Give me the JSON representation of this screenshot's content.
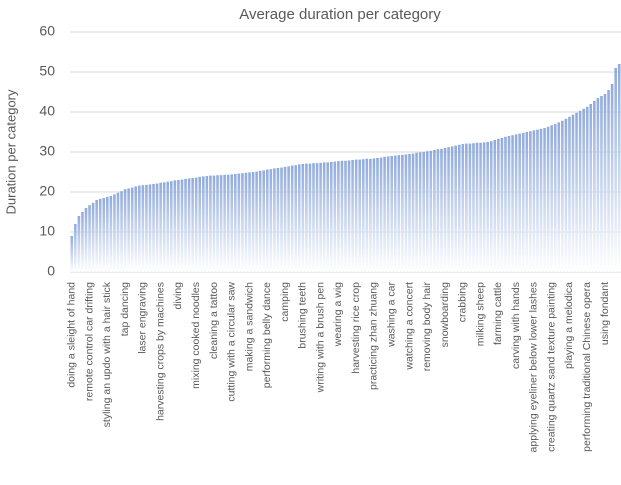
{
  "chart_data": {
    "type": "bar",
    "title": "Average duration per category",
    "ylabel": "Duration per category",
    "categories": [
      "doing a sleight of hand",
      null,
      null,
      null,
      null,
      "remote control car drifting",
      null,
      null,
      null,
      null,
      "styling an updo with a hair stick",
      null,
      null,
      null,
      null,
      "tap dancing",
      null,
      null,
      null,
      null,
      "laser engraving",
      null,
      null,
      null,
      null,
      "harvesting crops by machines",
      null,
      null,
      null,
      null,
      "diving",
      null,
      null,
      null,
      null,
      "mixing cooked noodles",
      null,
      null,
      null,
      null,
      "cleaning a tattoo",
      null,
      null,
      null,
      null,
      "cutting with a circular saw",
      null,
      null,
      null,
      null,
      "making a sandwich",
      null,
      null,
      null,
      null,
      "performing belly dance",
      null,
      null,
      null,
      null,
      "camping",
      null,
      null,
      null,
      null,
      "brushing teeth",
      null,
      null,
      null,
      null,
      "writing with a brush pen",
      null,
      null,
      null,
      null,
      "wearing a wig",
      null,
      null,
      null,
      null,
      "harvesting rice crop",
      null,
      null,
      null,
      null,
      "practicing zhan zhuang",
      null,
      null,
      null,
      null,
      "washing a car",
      null,
      null,
      null,
      null,
      "watching a concert",
      null,
      null,
      null,
      null,
      "removing body hair",
      null,
      null,
      null,
      null,
      "snowboarding",
      null,
      null,
      null,
      null,
      "crabbing",
      null,
      null,
      null,
      null,
      "milking sheep",
      null,
      null,
      null,
      null,
      "farming cattle",
      null,
      null,
      null,
      null,
      "carving with hands",
      null,
      null,
      null,
      null,
      "applying eyeliner below lower lashes",
      null,
      null,
      null,
      null,
      "creating quartz sand texture painting",
      null,
      null,
      null,
      null,
      "playing a melodica",
      null,
      null,
      null,
      null,
      "performing traditional Chinese opera",
      null,
      null,
      null,
      null,
      "using fondant",
      null,
      null,
      null,
      null
    ],
    "values": [
      9,
      12,
      14,
      15,
      16,
      16.7,
      17.3,
      18,
      18.3,
      18.5,
      18.8,
      19,
      19.4,
      19.8,
      20.2,
      20.7,
      20.9,
      21.1,
      21.4,
      21.6,
      21.7,
      21.8,
      21.9,
      22,
      22.1,
      22.3,
      22.4,
      22.6,
      22.7,
      22.9,
      23,
      23.1,
      23.3,
      23.4,
      23.5,
      23.6,
      23.8,
      23.9,
      24,
      24.1,
      24.1,
      24.2,
      24.2,
      24.3,
      24.3,
      24.4,
      24.5,
      24.6,
      24.7,
      24.8,
      24.9,
      25,
      25.1,
      25.3,
      25.4,
      25.6,
      25.7,
      25.9,
      26,
      26.1,
      26.3,
      26.4,
      26.6,
      26.7,
      26.9,
      27,
      27.1,
      27.1,
      27.2,
      27.2,
      27.3,
      27.4,
      27.4,
      27.5,
      27.6,
      27.7,
      27.8,
      27.8,
      27.9,
      28,
      28.1,
      28.1,
      28.2,
      28.3,
      28.3,
      28.4,
      28.5,
      28.6,
      28.8,
      28.9,
      29,
      29.1,
      29.2,
      29.3,
      29.4,
      29.5,
      29.6,
      29.8,
      29.9,
      30,
      30.2,
      30.3,
      30.5,
      30.7,
      30.8,
      31,
      31.2,
      31.4,
      31.6,
      31.8,
      32,
      32.1,
      32.1,
      32.2,
      32.3,
      32.3,
      32.4,
      32.5,
      32.7,
      33,
      33.3,
      33.5,
      33.8,
      34,
      34.2,
      34.4,
      34.6,
      34.8,
      35,
      35.2,
      35.4,
      35.6,
      35.8,
      36,
      36.3,
      36.7,
      37,
      37.4,
      37.8,
      38.3,
      38.8,
      39.3,
      39.8,
      40.3,
      40.8,
      41.3,
      42,
      42.8,
      43.5,
      44,
      44.5,
      45.5,
      47,
      51,
      52
    ],
    "color": "#8faadc",
    "ylim": [
      0,
      60
    ],
    "yticks": [
      0,
      10,
      20,
      30,
      40,
      50,
      60
    ],
    "grid": true
  }
}
